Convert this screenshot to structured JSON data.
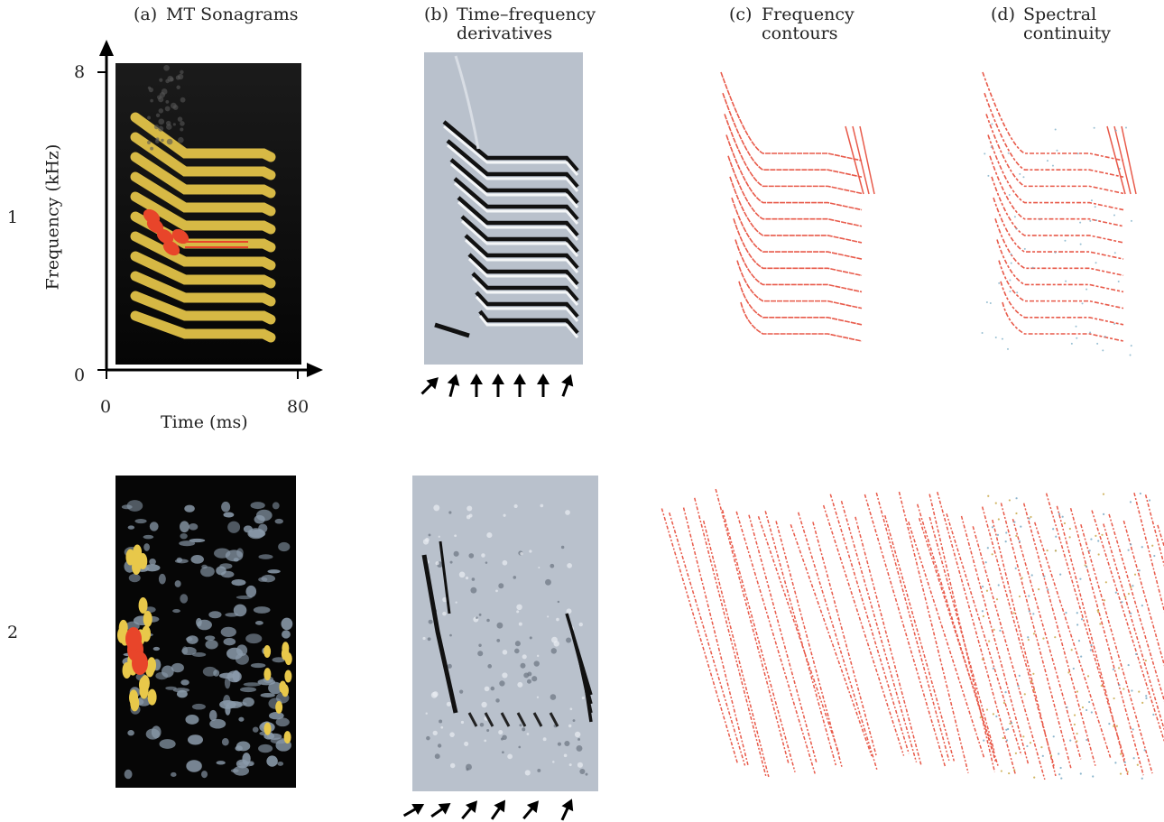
{
  "columns": [
    {
      "letter": "(a)",
      "line1": "MT Sonagrams",
      "line2": ""
    },
    {
      "letter": "(b)",
      "line1": "Time–frequency",
      "line2": "derivatives"
    },
    {
      "letter": "(c)",
      "line1": "Frequency",
      "line2": "contours"
    },
    {
      "letter": "(d)",
      "line1": "Spectral",
      "line2": "continuity"
    }
  ],
  "rows": [
    "1",
    "2"
  ],
  "axes": {
    "ylabel": "Frequency (kHz)",
    "xlabel": "Time (ms)",
    "y_top": "8",
    "y_bottom": "0",
    "x_left": "0",
    "x_right": "80"
  },
  "colors": {
    "sonagram_bg": "#0a0a0a",
    "sonagram_band": "#e8c84a",
    "sonagram_hot": "#e8452a",
    "sonagram_noise": "#8a9aaa",
    "derivative_bg": "#b8c0cc",
    "contour_line": "#e85a4a"
  },
  "arrows_row1_count": 7,
  "arrows_row2_count": 6
}
